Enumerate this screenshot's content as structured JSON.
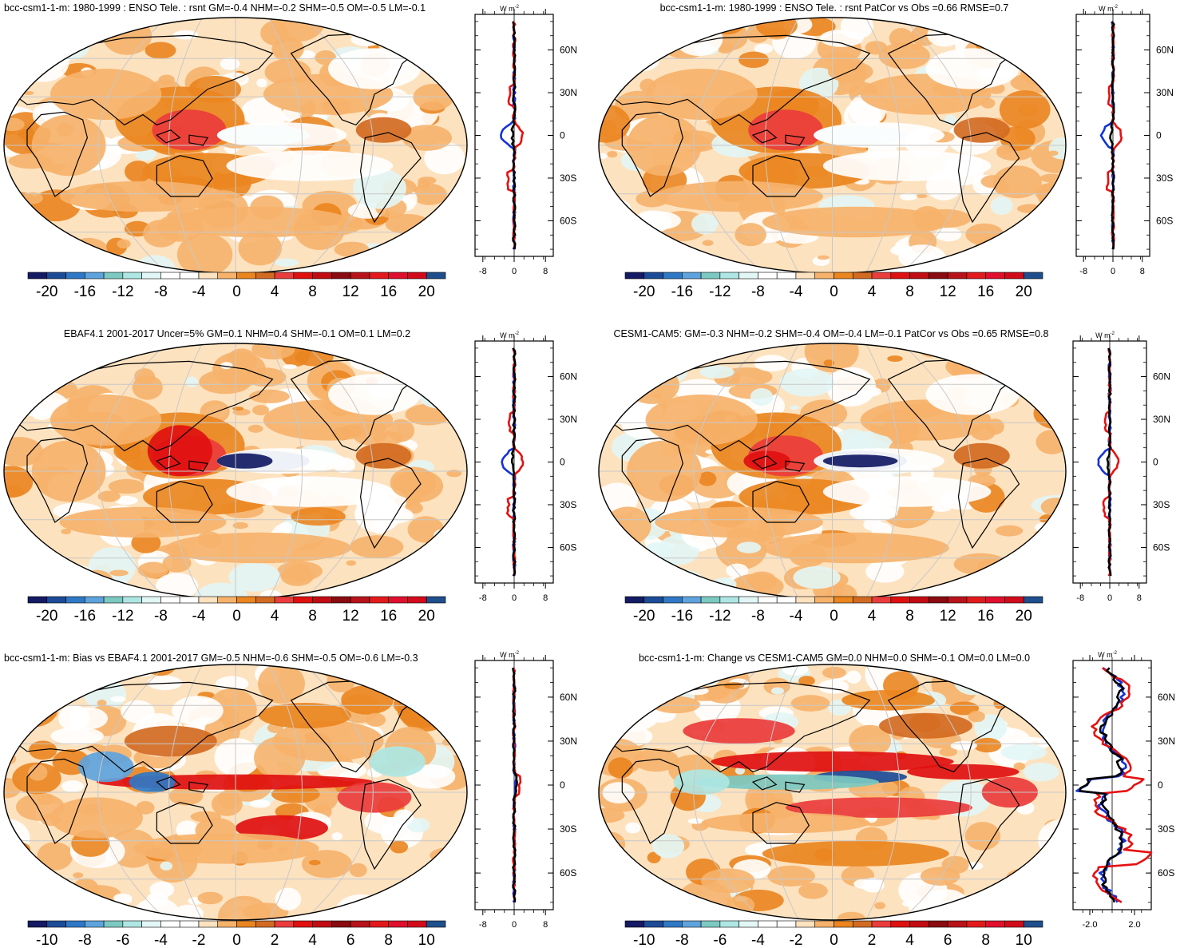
{
  "figure": {
    "description_free": true
  },
  "colors": {
    "scale": [
      "#141a63",
      "#1c4c98",
      "#2f78c6",
      "#5ea3dd",
      "#7cc9c2",
      "#aee6e3",
      "#e2f6f5",
      "#ffffff",
      "#ffffff",
      "#fde2bf",
      "#f6b26b",
      "#ea8520",
      "#d26a22",
      "#ea3c3c",
      "#e01010",
      "#c10c14",
      "#8a0b10",
      "#b8131a",
      "#e31a1c",
      "#e00f2d",
      "#d10b1b",
      "#1f4f8c"
    ],
    "obs_line": "#000000",
    "model_line": "#e61010",
    "ref_line": "#1432d8"
  },
  "chart_data": [
    {
      "type": "heatmap",
      "projection": "Robinson",
      "title": "bcc-csm1-1-m: 1980-1999 : ENSO Tele. : rsnt GM=-0.4 NHM=-0.2 SHM=-0.5 OM=-0.5 LM=-0.1",
      "colorbar_ticks": [
        "-20",
        "-16",
        "-12",
        "-8",
        "-4",
        "0",
        "4",
        "8",
        "12",
        "16",
        "20"
      ],
      "profile": {
        "units_label": "W m",
        "units_exp": "-2",
        "x_ticks": [
          "-8",
          "0",
          "8"
        ],
        "y_ticks": [
          "60N",
          "30N",
          "0",
          "30S",
          "60S"
        ],
        "xlim": [
          -10,
          10
        ]
      }
    },
    {
      "type": "heatmap",
      "projection": "Robinson",
      "title": "bcc-csm1-1-m: 1980-1999 : ENSO Tele. : rsnt PatCor vs Obs =0.66 RMSE=0.7",
      "colorbar_ticks": [
        "-20",
        "-16",
        "-12",
        "-8",
        "-4",
        "0",
        "4",
        "8",
        "12",
        "16",
        "20"
      ],
      "profile": {
        "units_label": "W m",
        "units_exp": "-2",
        "x_ticks": [
          "-8",
          "0",
          "8"
        ],
        "y_ticks": [
          "60N",
          "30N",
          "0",
          "30S",
          "60S"
        ],
        "xlim": [
          -10,
          10
        ]
      }
    },
    {
      "type": "heatmap",
      "projection": "Robinson",
      "title": "EBAF4.1 2001-2017 Uncer=5% GM=0.1 NHM=0.4 SHM=-0.1 OM=0.1 LM=0.2",
      "colorbar_ticks": [
        "-20",
        "-16",
        "-12",
        "-8",
        "-4",
        "0",
        "4",
        "8",
        "12",
        "16",
        "20"
      ],
      "profile": {
        "units_label": "W m",
        "units_exp": "-2",
        "x_ticks": [
          "-8",
          "0",
          "8"
        ],
        "y_ticks": [
          "60N",
          "30N",
          "0",
          "30S",
          "60S"
        ],
        "xlim": [
          -10,
          10
        ]
      }
    },
    {
      "type": "heatmap",
      "projection": "Robinson",
      "title": "CESM1-CAM5: GM=-0.3 NHM=-0.2 SHM=-0.4 OM=-0.4 LM=-0.1 PatCor vs Obs =0.65 RMSE=0.8",
      "colorbar_ticks": [
        "-20",
        "-16",
        "-12",
        "-8",
        "-4",
        "0",
        "4",
        "8",
        "12",
        "16",
        "20"
      ],
      "profile": {
        "units_label": "W m",
        "units_exp": "-2",
        "x_ticks": [
          "-8",
          "0",
          "8"
        ],
        "y_ticks": [
          "60N",
          "30N",
          "0",
          "30S",
          "60S"
        ],
        "xlim": [
          -10,
          10
        ]
      }
    },
    {
      "type": "heatmap",
      "projection": "Robinson",
      "title": "bcc-csm1-1-m: Bias vs EBAF4.1 2001-2017 GM=-0.5 NHM=-0.6 SHM=-0.5 OM=-0.6 LM=-0.3",
      "colorbar_ticks": [
        "-10",
        "-8",
        "-6",
        "-4",
        "-2",
        "0",
        "2",
        "4",
        "6",
        "8",
        "10"
      ],
      "profile": {
        "units_label": "W m",
        "units_exp": "-2",
        "x_ticks": [
          "-8",
          "0",
          "8"
        ],
        "y_ticks": [
          "60N",
          "30N",
          "0",
          "30S",
          "60S"
        ],
        "xlim": [
          -10,
          10
        ]
      }
    },
    {
      "type": "heatmap",
      "projection": "Robinson",
      "title": "bcc-csm1-1-m: Change vs CESM1-CAM5 GM=0.0 NHM=0.0 SHM=-0.1 OM=0.0 LM=0.0",
      "colorbar_ticks": [
        "-10",
        "-8",
        "-6",
        "-4",
        "-2",
        "0",
        "2",
        "4",
        "6",
        "8",
        "10"
      ],
      "profile": {
        "units_label": "W m",
        "units_exp": "-2",
        "x_ticks": [
          "-2.0",
          "2.0"
        ],
        "y_ticks": [
          "60N",
          "30N",
          "0",
          "30S",
          "60S"
        ],
        "xlim": [
          -3.5,
          3.5
        ]
      }
    }
  ]
}
